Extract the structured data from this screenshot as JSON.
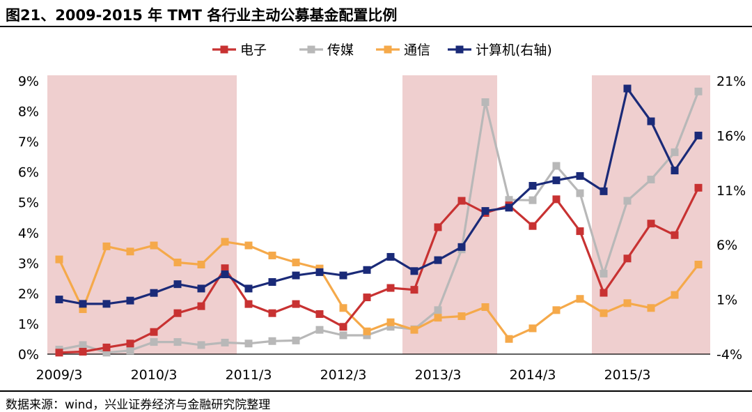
{
  "title": "图21、2009-2015 年 TMT 各行业主动公募基金配置比例",
  "source": "数据来源：wind，兴业证券经济与金融研究院整理",
  "chart_data": {
    "type": "line",
    "x": [
      "2009/3",
      "2009/6",
      "2009/9",
      "2009/12",
      "2010/3",
      "2010/6",
      "2010/9",
      "2010/12",
      "2011/3",
      "2011/6",
      "2011/9",
      "2011/12",
      "2012/3",
      "2012/6",
      "2012/9",
      "2012/12",
      "2013/3",
      "2013/6",
      "2013/9",
      "2013/12",
      "2014/3",
      "2014/6",
      "2014/9",
      "2014/12",
      "2015/3",
      "2015/6",
      "2015/9",
      "2015/12"
    ],
    "x_tick_labels": [
      "2009/3",
      "2010/3",
      "2011/3",
      "2012/3",
      "2013/3",
      "2014/3",
      "2015/3"
    ],
    "ylim_left": [
      0,
      9
    ],
    "ylim_right": [
      -4,
      21
    ],
    "y_tick_labels_left": [
      "0%",
      "1%",
      "2%",
      "3%",
      "4%",
      "5%",
      "6%",
      "7%",
      "8%",
      "9%"
    ],
    "y_tick_labels_right": [
      "-4%",
      "1%",
      "6%",
      "11%",
      "16%",
      "21%"
    ],
    "legend_position": "top",
    "shaded_periods": [
      [
        "2009/3",
        "2010/12"
      ],
      [
        "2012/12",
        "2013/9"
      ],
      [
        "2014/12",
        "2015/12"
      ]
    ],
    "shade_color": "#efcfcf",
    "series": [
      {
        "name": "电子",
        "axis": "left",
        "color": "#c83232",
        "values": [
          0.05,
          0.08,
          0.22,
          0.35,
          0.73,
          1.35,
          1.58,
          2.83,
          1.65,
          1.35,
          1.65,
          1.32,
          0.9,
          1.87,
          2.18,
          2.12,
          4.18,
          5.05,
          4.65,
          4.9,
          4.22,
          5.1,
          4.05,
          2.02,
          3.15,
          4.3,
          3.92,
          5.48
        ]
      },
      {
        "name": "传媒",
        "axis": "left",
        "color": "#b8b8b8",
        "values": [
          0.15,
          0.3,
          0.05,
          0.12,
          0.4,
          0.4,
          0.3,
          0.38,
          0.35,
          0.43,
          0.45,
          0.8,
          0.62,
          0.62,
          0.9,
          0.82,
          1.45,
          3.45,
          8.3,
          5.08,
          5.07,
          6.2,
          5.3,
          2.65,
          5.05,
          5.75,
          6.65,
          8.65
        ]
      },
      {
        "name": "通信",
        "axis": "left",
        "color": "#f5a94a",
        "values": [
          3.12,
          1.48,
          3.55,
          3.38,
          3.58,
          3.02,
          2.95,
          3.7,
          3.58,
          3.25,
          3.02,
          2.82,
          1.52,
          0.75,
          1.05,
          0.8,
          1.2,
          1.25,
          1.55,
          0.5,
          0.85,
          1.45,
          1.82,
          1.35,
          1.68,
          1.52,
          1.95,
          2.95
        ]
      },
      {
        "name": "计算机(右轴)",
        "axis": "right",
        "color": "#1a2a78",
        "values": [
          1.0,
          0.6,
          0.6,
          0.9,
          1.6,
          2.4,
          2.0,
          3.3,
          2.0,
          2.6,
          3.2,
          3.5,
          3.2,
          3.7,
          4.9,
          3.6,
          4.6,
          5.8,
          9.1,
          9.4,
          11.4,
          11.9,
          12.3,
          10.9,
          20.3,
          17.3,
          12.8,
          16.0
        ]
      }
    ]
  }
}
